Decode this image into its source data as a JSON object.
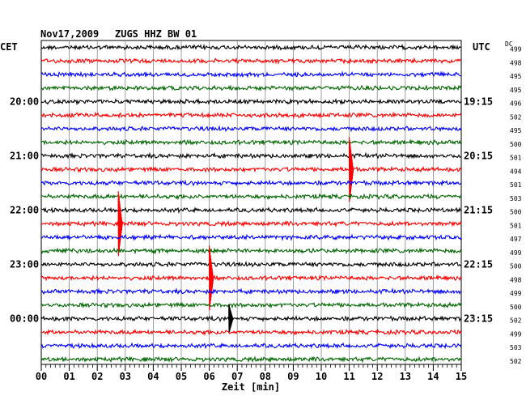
{
  "header": {
    "date": "Nov17,2009",
    "station": "ZUGS HHZ BW 01",
    "left_tz": "CET",
    "right_tz": "UTC",
    "dc_label": "DC"
  },
  "chart_data": {
    "type": "line",
    "title": "Nov17,2009 ZUGS HHZ BW 01",
    "xlabel": "Zeit [min]",
    "x_ticks": [
      "00",
      "01",
      "02",
      "03",
      "04",
      "05",
      "06",
      "07",
      "08",
      "09",
      "10",
      "11",
      "12",
      "13",
      "14",
      "15"
    ],
    "xlim": [
      0,
      15
    ],
    "trace_colors": [
      "#000000",
      "#ff0000",
      "#0000ff",
      "#006600"
    ],
    "left_time_labels": [
      {
        "trace": 4,
        "label": "20:00"
      },
      {
        "trace": 8,
        "label": "21:00"
      },
      {
        "trace": 12,
        "label": "22:00"
      },
      {
        "trace": 16,
        "label": "23:00"
      },
      {
        "trace": 20,
        "label": "00:00"
      }
    ],
    "right_time_labels": [
      {
        "trace": 4,
        "label": "19:15"
      },
      {
        "trace": 8,
        "label": "20:15"
      },
      {
        "trace": 12,
        "label": "21:15"
      },
      {
        "trace": 16,
        "label": "22:15"
      },
      {
        "trace": 20,
        "label": "23:15"
      }
    ],
    "dc_values": [
      "499",
      "498",
      "495",
      "495",
      "496",
      "502",
      "495",
      "500",
      "501",
      "494",
      "501",
      "503",
      "500",
      "501",
      "497",
      "499",
      "500",
      "498",
      "499",
      "500",
      "502",
      "499",
      "503",
      "502"
    ],
    "events": [
      {
        "trace": 9,
        "minute": 11.0,
        "amplitude": "large"
      },
      {
        "trace": 13,
        "minute": 2.75,
        "amplitude": "large"
      },
      {
        "trace": 17,
        "minute": 6.0,
        "amplitude": "large"
      },
      {
        "trace": 20,
        "minute": 6.7,
        "amplitude": "medium"
      }
    ]
  }
}
